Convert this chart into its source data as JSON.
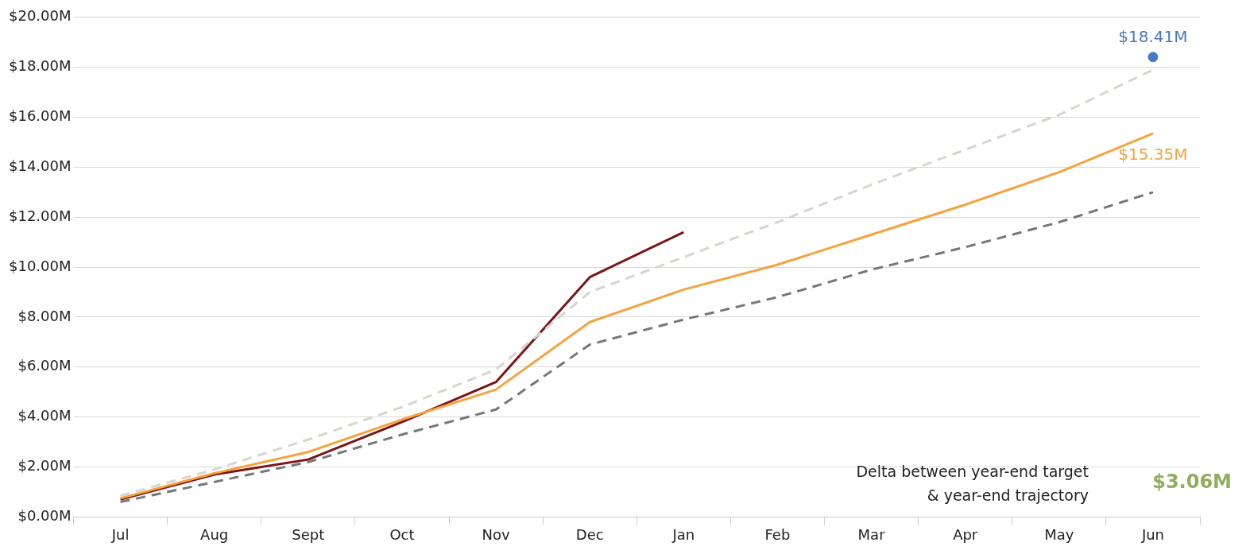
{
  "chart_data": {
    "type": "line",
    "categories": [
      "Jul",
      "Aug",
      "Sept",
      "Oct",
      "Nov",
      "Dec",
      "Jan",
      "Feb",
      "Mar",
      "Apr",
      "May",
      "Jun"
    ],
    "series": [
      {
        "color": "#d6d6cc",
        "line_style": "dashed",
        "values": [
          0.85,
          1.9,
          3.1,
          4.4,
          5.9,
          9.0,
          10.4,
          11.8,
          13.3,
          14.7,
          16.1,
          17.9
        ]
      },
      {
        "color": "#777777",
        "line_style": "dashed",
        "values": [
          0.6,
          1.4,
          2.2,
          3.3,
          4.3,
          6.9,
          7.9,
          8.8,
          9.9,
          10.8,
          11.8,
          13.0
        ]
      },
      {
        "color": "#f5a33f",
        "line_style": "solid",
        "values": [
          0.75,
          1.75,
          2.6,
          3.9,
          5.1,
          7.8,
          9.1,
          10.1,
          11.3,
          12.5,
          13.8,
          15.35
        ],
        "value_labels": [
          null,
          null,
          null,
          null,
          null,
          null,
          null,
          null,
          null,
          null,
          null,
          "$15.35M"
        ]
      },
      {
        "color": "#7b1416",
        "line_style": "solid",
        "values": [
          0.7,
          1.7,
          2.3,
          3.8,
          5.4,
          9.6,
          11.4,
          null,
          null,
          null,
          null,
          null
        ]
      },
      {
        "type": "scatter",
        "color": "#4a78bf",
        "marker": "circle",
        "values": [
          null,
          null,
          null,
          null,
          null,
          null,
          null,
          null,
          null,
          null,
          null,
          18.41
        ],
        "value_labels": [
          null,
          null,
          null,
          null,
          null,
          null,
          null,
          null,
          null,
          null,
          null,
          "$18.41M"
        ]
      }
    ],
    "ylim": [
      0,
      20
    ],
    "yticks": [
      {
        "value": 0,
        "label": "$0.00M"
      },
      {
        "value": 2,
        "label": "$2.00M"
      },
      {
        "value": 4,
        "label": "$4.00M"
      },
      {
        "value": 6,
        "label": "$6.00M"
      },
      {
        "value": 8,
        "label": "$8.00M"
      },
      {
        "value": 10,
        "label": "$10.00M"
      },
      {
        "value": 12,
        "label": "$12.00M"
      },
      {
        "value": 14,
        "label": "$14.00M"
      },
      {
        "value": 16,
        "label": "$16.00M"
      },
      {
        "value": 18,
        "label": "$18.00M"
      },
      {
        "value": 20,
        "label": "$20.00M"
      }
    ],
    "grid": "y",
    "legend": false,
    "annotations": [
      "Delta between year-end target\n& year-end trajectory",
      "$3.06M"
    ]
  }
}
